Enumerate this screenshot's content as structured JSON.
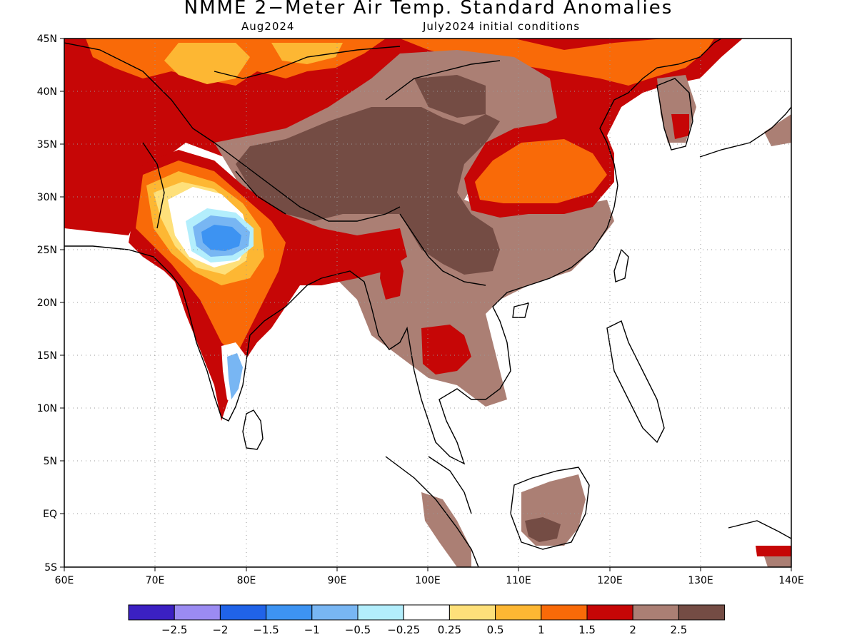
{
  "title": "NMME 2−Meter Air Temp. Standard Anomalies",
  "subtitle_left": "Aug2024",
  "subtitle_right": "July2024 initial conditions",
  "lat_labels": [
    "45N",
    "40N",
    "35N",
    "30N",
    "25N",
    "20N",
    "15N",
    "10N",
    "5N",
    "EQ",
    "5S"
  ],
  "lon_labels": [
    "60E",
    "70E",
    "80E",
    "90E",
    "100E",
    "110E",
    "120E",
    "130E",
    "140E"
  ],
  "colorbar": {
    "colors": [
      "#3b20c2",
      "#9b8bf2",
      "#2063e8",
      "#3d93f2",
      "#78b6f3",
      "#b3eefc",
      "#ffffff",
      "#fee07a",
      "#fdb733",
      "#f96a08",
      "#c60606",
      "#ab7f74",
      "#744c44"
    ],
    "labels": [
      "−2.5",
      "−2",
      "−1.5",
      "−1",
      "−0.5",
      "−0.25",
      "0.25",
      "0.5",
      "1",
      "1.5",
      "2",
      "2.5"
    ]
  },
  "palette": {
    "brown_dark": "#744c44",
    "brown_light": "#ab7f74",
    "red": "#c60606",
    "orange_red": "#f96a08",
    "orange": "#fdb733",
    "yellow": "#fee07a",
    "light_blue": "#b3eefc",
    "mid_blue": "#78b6f3",
    "blue": "#3d93f2"
  }
}
